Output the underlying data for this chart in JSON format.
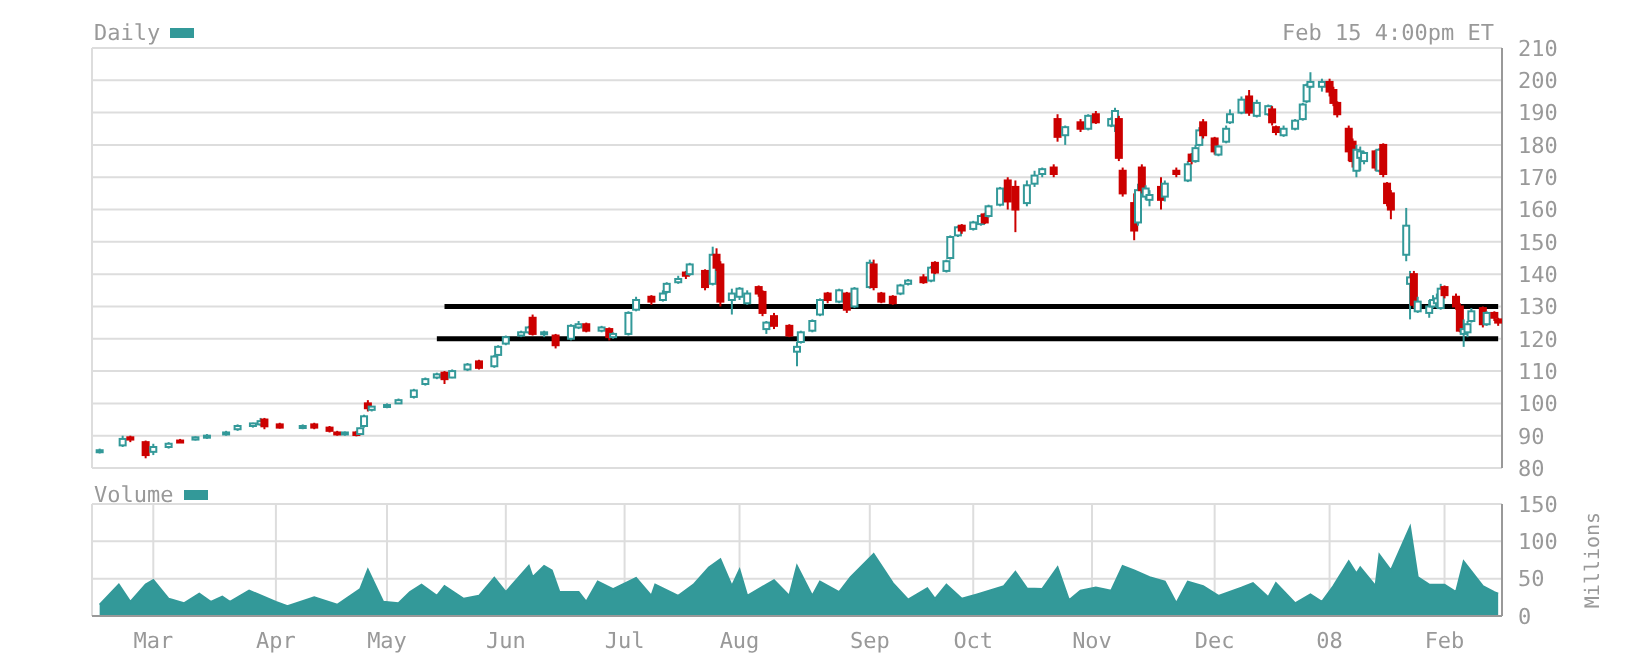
{
  "chart_data": [
    {
      "type": "candlestick",
      "legend": "top left",
      "tick_labels": "y",
      "grid": true,
      "annotations": [
        "Feb 15 4:00pm ET"
      ],
      "xlim": [
        "2007-02-13",
        "2008-02-16"
      ],
      "xticks": [
        {
          "value": "2007-03-01",
          "label": null
        },
        {
          "value": "2007-04-02",
          "label": null
        },
        {
          "value": "2007-05-01",
          "label": null
        },
        {
          "value": "2007-06-01",
          "label": null
        },
        {
          "value": "2007-07-02",
          "label": null
        },
        {
          "value": "2007-08-01",
          "label": null
        },
        {
          "value": "2007-09-04",
          "label": null
        },
        {
          "value": "2007-10-01",
          "label": null
        },
        {
          "value": "2007-11-01",
          "label": null
        },
        {
          "value": "2007-12-03",
          "label": null
        },
        {
          "value": "2008-01-02",
          "label": null
        },
        {
          "value": "2008-02-01",
          "label": null
        }
      ],
      "ylim": [
        80,
        210
      ],
      "yticks": [
        80,
        90,
        100,
        110,
        120,
        130,
        140,
        150,
        160,
        170,
        180,
        190,
        200,
        210
      ],
      "series": [
        {
          "type": "line",
          "color": "#000000",
          "x": [
            "2007-05-16",
            "2008-02-15"
          ],
          "values": [
            130,
            130
          ]
        },
        {
          "type": "line",
          "color": "#000000",
          "x": [
            "2007-05-14",
            "2008-02-15"
          ],
          "values": [
            120,
            120
          ]
        },
        {
          "name": "Daily",
          "color": "#339999",
          "colors": [
            "#339999",
            "#339999",
            "#cc0000",
            "#cc0000",
            "#339999",
            "#339999",
            "#cc0000",
            "#339999",
            "#339999",
            "#339999",
            "#339999",
            "#339999",
            "#339999",
            "#cc0000",
            "#cc0000",
            "#339999",
            "#cc0000",
            "#cc0000",
            "#cc0000",
            "#339999",
            "#cc0000",
            "#339999",
            "#339999",
            "#cc0000",
            "#339999",
            "#339999",
            "#339999",
            "#339999",
            "#339999",
            "#339999",
            "#cc0000",
            "#339999",
            "#339999",
            "#cc0000",
            "#339999",
            "#339999",
            "#339999",
            "#339999",
            "#339999",
            "#cc0000",
            "#339999",
            "#cc0000",
            "#339999",
            "#339999",
            "#cc0000",
            "#339999",
            "#cc0000",
            "#339999",
            "#339999",
            "#339999",
            "#cc0000",
            "#339999",
            "#339999",
            "#339999",
            "#cc0000",
            "#339999",
            "#cc0000",
            "#339999",
            "#cc0000",
            "#cc0000",
            "#339999",
            "#339999",
            "#339999",
            "#cc0000",
            "#cc0000",
            "#339999",
            "#cc0000",
            "#cc0000",
            "#339999",
            "#339999",
            "#339999",
            "#339999",
            "#cc0000",
            "#339999",
            "#cc0000",
            "#339999",
            "#339999",
            "#cc0000",
            "#cc0000",
            "#cc0000",
            "#339999",
            "#339999",
            "#cc0000",
            "#339999",
            "#cc0000",
            "#339999",
            "#339999",
            "#339999",
            "#cc0000",
            "#339999",
            "#339999",
            "#cc0000",
            "#339999",
            "#339999",
            "#cc0000",
            "#cc0000",
            "#339999",
            "#339999",
            "#339999",
            "#cc0000",
            "#cc0000",
            "#339999",
            "#cc0000",
            "#339999",
            "#cc0000",
            "#339999",
            "#339999",
            "#cc0000",
            "#cc0000",
            "#cc0000",
            "#339999",
            "#cc0000",
            "#339999",
            "#339999",
            "#cc0000",
            "#339999",
            "#cc0000",
            "#339999",
            "#cc0000",
            "#339999",
            "#339999",
            "#cc0000",
            "#cc0000",
            "#339999",
            "#339999",
            "#339999",
            "#339999",
            "#cc0000",
            "#339999",
            "#339999",
            "#cc0000",
            "#cc0000",
            "#339999",
            "#339999",
            "#339999",
            "#339999",
            "#339999",
            "#339999",
            "#cc0000",
            "#cc0000",
            "#cc0000",
            "#cc0000",
            "#cc0000",
            "#339999",
            "#339999",
            "#339999",
            "#cc0000",
            "#339999",
            "#cc0000",
            "#cc0000",
            "#cc0000",
            "#339999",
            "#339999",
            "#cc0000",
            "#339999",
            "#339999",
            "#339999",
            "#339999",
            "#339999",
            "#cc0000",
            "#cc0000",
            "#cc0000",
            "#339999",
            "#339999",
            "#339999",
            "#cc0000",
            "#339999",
            "#cc0000",
            "#cc0000"
          ],
          "x": [
            "2007-02-15",
            "2007-02-21",
            "2007-02-23",
            "2007-02-27",
            "2007-03-01",
            "2007-03-05",
            "2007-03-08",
            "2007-03-12",
            "2007-03-15",
            "2007-03-20",
            "2007-03-23",
            "2007-03-27",
            "2007-03-29",
            "2007-03-30",
            "2007-04-03",
            "2007-04-09",
            "2007-04-12",
            "2007-04-16",
            "2007-04-18",
            "2007-04-20",
            "2007-04-23",
            "2007-04-24",
            "2007-04-25",
            "2007-04-26",
            "2007-04-27",
            "2007-05-01",
            "2007-05-04",
            "2007-05-08",
            "2007-05-11",
            "2007-05-14",
            "2007-05-16",
            "2007-05-18",
            "2007-05-22",
            "2007-05-25",
            "2007-05-29",
            "2007-05-30",
            "2007-06-01",
            "2007-06-05",
            "2007-06-07",
            "2007-06-08",
            "2007-06-11",
            "2007-06-14",
            "2007-06-18",
            "2007-06-20",
            "2007-06-22",
            "2007-06-26",
            "2007-06-28",
            "2007-06-29",
            "2007-07-03",
            "2007-07-05",
            "2007-07-09",
            "2007-07-12",
            "2007-07-13",
            "2007-07-16",
            "2007-07-18",
            "2007-07-19",
            "2007-07-23",
            "2007-07-25",
            "2007-07-26",
            "2007-07-27",
            "2007-07-30",
            "2007-08-01",
            "2007-08-03",
            "2007-08-06",
            "2007-08-07",
            "2007-08-08",
            "2007-08-10",
            "2007-08-14",
            "2007-08-16",
            "2007-08-17",
            "2007-08-20",
            "2007-08-22",
            "2007-08-24",
            "2007-08-27",
            "2007-08-29",
            "2007-08-31",
            "2007-09-04",
            "2007-09-05",
            "2007-09-07",
            "2007-09-10",
            "2007-09-12",
            "2007-09-14",
            "2007-09-18",
            "2007-09-20",
            "2007-09-21",
            "2007-09-24",
            "2007-09-25",
            "2007-09-27",
            "2007-09-28",
            "2007-10-01",
            "2007-10-03",
            "2007-10-04",
            "2007-10-05",
            "2007-10-08",
            "2007-10-10",
            "2007-10-12",
            "2007-10-15",
            "2007-10-17",
            "2007-10-19",
            "2007-10-22",
            "2007-10-23",
            "2007-10-25",
            "2007-10-29",
            "2007-10-31",
            "2007-11-02",
            "2007-11-06",
            "2007-11-07",
            "2007-11-08",
            "2007-11-09",
            "2007-11-12",
            "2007-11-13",
            "2007-11-14",
            "2007-11-15",
            "2007-11-16",
            "2007-11-19",
            "2007-11-20",
            "2007-11-23",
            "2007-11-26",
            "2007-11-27",
            "2007-11-28",
            "2007-11-29",
            "2007-11-30",
            "2007-12-03",
            "2007-12-04",
            "2007-12-06",
            "2007-12-07",
            "2007-12-10",
            "2007-12-12",
            "2007-12-14",
            "2007-12-17",
            "2007-12-18",
            "2007-12-19",
            "2007-12-21",
            "2007-12-24",
            "2007-12-26",
            "2007-12-27",
            "2007-12-28",
            "2007-12-31",
            "2008-01-02",
            "2008-01-03",
            "2008-01-04",
            "2008-01-07",
            "2008-01-08",
            "2008-01-09",
            "2008-01-10",
            "2008-01-11",
            "2008-01-14",
            "2008-01-15",
            "2008-01-16",
            "2008-01-17",
            "2008-01-18",
            "2008-01-22",
            "2008-01-23",
            "2008-01-24",
            "2008-01-25",
            "2008-01-28",
            "2008-01-29",
            "2008-01-30",
            "2008-01-31",
            "2008-02-01",
            "2008-02-04",
            "2008-02-05",
            "2008-02-06",
            "2008-02-07",
            "2008-02-08",
            "2008-02-11",
            "2008-02-12",
            "2008-02-14",
            "2008-02-15"
          ],
          "ohlc": [
            [
              85,
              86,
              84.5,
              85.5
            ],
            [
              87,
              90,
              86.5,
              89
            ],
            [
              89.5,
              90,
              88,
              88.8
            ],
            [
              88,
              88.5,
              83,
              84
            ],
            [
              85,
              87.5,
              84,
              86.5
            ],
            [
              86.5,
              88,
              86,
              87.5
            ],
            [
              88.5,
              89,
              88,
              88.2
            ],
            [
              88.8,
              89.8,
              88.5,
              89.5
            ],
            [
              89.5,
              90.5,
              89,
              90
            ],
            [
              90.5,
              91.5,
              90,
              91
            ],
            [
              92,
              93.5,
              91.5,
              93
            ],
            [
              93,
              94,
              92.5,
              93.8
            ],
            [
              93.5,
              95.5,
              93,
              94.5
            ],
            [
              95,
              95.5,
              92,
              92.9
            ],
            [
              93.5,
              94,
              92.2,
              92.5
            ],
            [
              92.5,
              93.5,
              92,
              93
            ],
            [
              93.5,
              94,
              92,
              92.5
            ],
            [
              92.5,
              93,
              91,
              91.5
            ],
            [
              91,
              91.5,
              90,
              90.5
            ],
            [
              90.5,
              91.3,
              90,
              91
            ],
            [
              91,
              91.5,
              89.8,
              90.2
            ],
            [
              90.5,
              92.5,
              90.3,
              92.3
            ],
            [
              93,
              96.5,
              92.5,
              96
            ],
            [
              100,
              101,
              97.5,
              98.5
            ],
            [
              98,
              99,
              97.5,
              99
            ],
            [
              99,
              100,
              98.5,
              99.5
            ],
            [
              100,
              101.5,
              99.8,
              101
            ],
            [
              102,
              104.5,
              101.5,
              104
            ],
            [
              106,
              108,
              105.5,
              107.5
            ],
            [
              108,
              109.5,
              107.5,
              109
            ],
            [
              109.5,
              110,
              106,
              107.5
            ],
            [
              108,
              110.5,
              107.8,
              110
            ],
            [
              110.5,
              112.5,
              110,
              112
            ],
            [
              113,
              113.5,
              110.5,
              111
            ],
            [
              111.5,
              115,
              111,
              114.5
            ],
            [
              115,
              118,
              114.8,
              117.5
            ],
            [
              118.5,
              121,
              118,
              120.5
            ],
            [
              121,
              122.5,
              120.5,
              122
            ],
            [
              122,
              124,
              121.5,
              123.5
            ],
            [
              126.5,
              127.5,
              121,
              121.5
            ],
            [
              121.5,
              122.5,
              120.5,
              122
            ],
            [
              121,
              121.5,
              117,
              118
            ],
            [
              120,
              124.5,
              119.5,
              124
            ],
            [
              123.5,
              125.5,
              123,
              124.5
            ],
            [
              124.5,
              125,
              122,
              122.5
            ],
            [
              122.5,
              124,
              122,
              123.5
            ],
            [
              123,
              123.5,
              119.5,
              120.5
            ],
            [
              120.5,
              122,
              120,
              121.5
            ],
            [
              121.5,
              128.5,
              121,
              128
            ],
            [
              129,
              133,
              128.5,
              132
            ],
            [
              133,
              133.5,
              130.5,
              131.5
            ],
            [
              132,
              135,
              131.5,
              134
            ],
            [
              134.5,
              137.5,
              134,
              137
            ],
            [
              137.5,
              139.5,
              137,
              138.5
            ],
            [
              140.5,
              141,
              138.5,
              139.5
            ],
            [
              140,
              143.5,
              139.5,
              143
            ],
            [
              141,
              141.5,
              135,
              136
            ],
            [
              137,
              148.5,
              136.5,
              146
            ],
            [
              146,
              148,
              141,
              142
            ],
            [
              143,
              144,
              130,
              131.5
            ],
            [
              132,
              135.5,
              127.5,
              134
            ],
            [
              133,
              136,
              132,
              135.5
            ],
            [
              131,
              135,
              130.5,
              134
            ],
            [
              136,
              136.5,
              133,
              134
            ],
            [
              134.5,
              135,
              127,
              128
            ],
            [
              123,
              125.5,
              121.5,
              125
            ],
            [
              127,
              128,
              123,
              124
            ],
            [
              124,
              124.5,
              120.5,
              121
            ],
            [
              116,
              119,
              111.5,
              117.5
            ],
            [
              119,
              122.5,
              118.5,
              122
            ],
            [
              122.5,
              126,
              122,
              125.5
            ],
            [
              127.5,
              132.5,
              127,
              132
            ],
            [
              134,
              134.5,
              131,
              132
            ],
            [
              131.5,
              135.5,
              131,
              135
            ],
            [
              134,
              134.5,
              128,
              129
            ],
            [
              130,
              136,
              129.5,
              135.5
            ],
            [
              136,
              144.5,
              135.5,
              143.5
            ],
            [
              143,
              144.5,
              135,
              136
            ],
            [
              134,
              134.5,
              131,
              131.5
            ],
            [
              133,
              133.5,
              130.5,
              131
            ],
            [
              134,
              137,
              133.5,
              136.5
            ],
            [
              137,
              138.5,
              136.5,
              138
            ],
            [
              139,
              140,
              137,
              137.5
            ],
            [
              138,
              142.5,
              137.5,
              142
            ],
            [
              143.5,
              144,
              140,
              140.5
            ],
            [
              141,
              144.5,
              140.5,
              144
            ],
            [
              145,
              152,
              144.5,
              151.5
            ],
            [
              152,
              155,
              151.5,
              154.5
            ],
            [
              155,
              155.5,
              152.5,
              153.5
            ],
            [
              154,
              156.5,
              153.5,
              156
            ],
            [
              155.5,
              158.5,
              155,
              158
            ],
            [
              158.5,
              159,
              155.5,
              156
            ],
            [
              158,
              161.5,
              157.5,
              161
            ],
            [
              161.5,
              167,
              161,
              166.5
            ],
            [
              169,
              170,
              160,
              162.5
            ],
            [
              167,
              169,
              153,
              160
            ],
            [
              162,
              169,
              161,
              167.5
            ],
            [
              168,
              172,
              167,
              170.5
            ],
            [
              171,
              173,
              170,
              172.5
            ],
            [
              173,
              174,
              170,
              171
            ],
            [
              188,
              189.5,
              181,
              182.5
            ],
            [
              183,
              186,
              180,
              185.5
            ],
            [
              187,
              188,
              184,
              185
            ],
            [
              185,
              189.5,
              184.5,
              189
            ],
            [
              189.5,
              190.5,
              186.5,
              187
            ],
            [
              186,
              188.5,
              185.5,
              188
            ],
            [
              186,
              191.5,
              184,
              190.5
            ],
            [
              188,
              189,
              175,
              176
            ],
            [
              172,
              173,
              164,
              165
            ],
            [
              162,
              165,
              150.5,
              153.5
            ],
            [
              156,
              168,
              155,
              166
            ],
            [
              173,
              174,
              165,
              166
            ],
            [
              164,
              167.5,
              163,
              166.5
            ],
            [
              163,
              166,
              161,
              164.5
            ],
            [
              167,
              170,
              160,
              163
            ],
            [
              164,
              169,
              162.5,
              168
            ],
            [
              172,
              173,
              170,
              171
            ],
            [
              169,
              175,
              168.5,
              174
            ],
            [
              177,
              177.5,
              174,
              175
            ],
            [
              175,
              180,
              174.5,
              179
            ],
            [
              180,
              185.5,
              179.5,
              184.5
            ],
            [
              187,
              188,
              182,
              183
            ],
            [
              182,
              182.5,
              177,
              178
            ],
            [
              177,
              180,
              176.5,
              179.5
            ],
            [
              181,
              186,
              180.5,
              185
            ],
            [
              187,
              191,
              186.5,
              189.5
            ],
            [
              190,
              195,
              189.5,
              194
            ],
            [
              195,
              197,
              189,
              190
            ],
            [
              189,
              194,
              188.5,
              193
            ],
            [
              189.5,
              192.5,
              189,
              192
            ],
            [
              191,
              192,
              186,
              187
            ],
            [
              185.5,
              186,
              183,
              184
            ],
            [
              183,
              186,
              182.5,
              185
            ],
            [
              185,
              188,
              184.5,
              187.5
            ],
            [
              188,
              193,
              187.5,
              192.5
            ],
            [
              193.5,
              199,
              193,
              198.5
            ],
            [
              198,
              202.5,
              197.5,
              199.5
            ],
            [
              198,
              200.5,
              196.5,
              199.5
            ],
            [
              199.5,
              200.5,
              195,
              196.5
            ],
            [
              197,
              198,
              192,
              193
            ],
            [
              193,
              193.5,
              188.5,
              189.5
            ],
            [
              185,
              186,
              175,
              178
            ],
            [
              181,
              182,
              173,
              175
            ],
            [
              172,
              180,
              170,
              178.5
            ],
            [
              176,
              179.5,
              172,
              178
            ],
            [
              175,
              178,
              174,
              177.5
            ],
            [
              178,
              178.5,
              172,
              173
            ],
            [
              172,
              179,
              171.5,
              178.5
            ],
            [
              180,
              180.5,
              170,
              171
            ],
            [
              168,
              168.5,
              161,
              162
            ],
            [
              165,
              166,
              157,
              160
            ],
            [
              146,
              160.5,
              144,
              155
            ],
            [
              137,
              141,
              126,
              139
            ],
            [
              140,
              141,
              129.5,
              130.5
            ],
            [
              128.5,
              133,
              128,
              131.5
            ],
            [
              128,
              132,
              126.5,
              130
            ],
            [
              130,
              133.5,
              129.5,
              132
            ],
            [
              131,
              134,
              129.5,
              132.5
            ],
            [
              129.5,
              137,
              129,
              135.5
            ],
            [
              136,
              136.5,
              132.5,
              133.5
            ],
            [
              133,
              134,
              129,
              130
            ],
            [
              130,
              131,
              122,
              122.5
            ],
            [
              121.5,
              126,
              117.5,
              123
            ],
            [
              122,
              125.5,
              120.5,
              124.5
            ],
            [
              125.5,
              129.5,
              125,
              128.5
            ],
            [
              129.5,
              130,
              123.5,
              124.5
            ],
            [
              124.5,
              128.5,
              124,
              128
            ],
            [
              128,
              128.5,
              125.5,
              126.5
            ],
            [
              126,
              126.5,
              124,
              125
            ]
          ]
        }
      ]
    },
    {
      "type": "area",
      "legend": "top left",
      "grid": true,
      "ylabel": "Millions",
      "xlim": [
        "2007-02-13",
        "2008-02-16"
      ],
      "xticks": [
        {
          "value": "2007-03-01",
          "label": "Mar"
        },
        {
          "value": "2007-04-02",
          "label": "Apr"
        },
        {
          "value": "2007-05-01",
          "label": "May"
        },
        {
          "value": "2007-06-01",
          "label": "Jun"
        },
        {
          "value": "2007-07-02",
          "label": "Jul"
        },
        {
          "value": "2007-08-01",
          "label": "Aug"
        },
        {
          "value": "2007-09-04",
          "label": "Sep"
        },
        {
          "value": "2007-10-01",
          "label": "Oct"
        },
        {
          "value": "2007-11-01",
          "label": "Nov"
        },
        {
          "value": "2007-12-03",
          "label": "Dec"
        },
        {
          "value": "2008-01-02",
          "label": "08"
        },
        {
          "value": "2008-02-01",
          "label": "Feb"
        }
      ],
      "ylim": [
        0,
        150
      ],
      "yticks": [
        0,
        50,
        100,
        150
      ],
      "series": [
        {
          "name": "Volume",
          "color": "#339999",
          "x": [
            "2007-02-15",
            "2007-02-20",
            "2007-02-23",
            "2007-02-27",
            "2007-03-01",
            "2007-03-05",
            "2007-03-09",
            "2007-03-13",
            "2007-03-16",
            "2007-03-19",
            "2007-03-21",
            "2007-03-26",
            "2007-04-02",
            "2007-04-05",
            "2007-04-12",
            "2007-04-18",
            "2007-04-24",
            "2007-04-26",
            "2007-04-30",
            "2007-05-04",
            "2007-05-07",
            "2007-05-10",
            "2007-05-14",
            "2007-05-16",
            "2007-05-21",
            "2007-05-25",
            "2007-05-29",
            "2007-06-01",
            "2007-06-07",
            "2007-06-08",
            "2007-06-11",
            "2007-06-13",
            "2007-06-15",
            "2007-06-20",
            "2007-06-22",
            "2007-06-25",
            "2007-06-29",
            "2007-07-05",
            "2007-07-09",
            "2007-07-10",
            "2007-07-16",
            "2007-07-20",
            "2007-07-24",
            "2007-07-27",
            "2007-07-30",
            "2007-08-01",
            "2007-08-03",
            "2007-08-10",
            "2007-08-14",
            "2007-08-16",
            "2007-08-20",
            "2007-08-22",
            "2007-08-27",
            "2007-08-30",
            "2007-09-05",
            "2007-09-10",
            "2007-09-14",
            "2007-09-19",
            "2007-09-21",
            "2007-09-24",
            "2007-09-28",
            "2007-10-02",
            "2007-10-09",
            "2007-10-12",
            "2007-10-15",
            "2007-10-19",
            "2007-10-23",
            "2007-10-26",
            "2007-10-29",
            "2007-11-02",
            "2007-11-06",
            "2007-11-09",
            "2007-11-12",
            "2007-11-16",
            "2007-11-20",
            "2007-11-23",
            "2007-11-26",
            "2007-11-30",
            "2007-12-04",
            "2007-12-10",
            "2007-12-13",
            "2007-12-17",
            "2007-12-19",
            "2007-12-24",
            "2007-12-28",
            "2007-12-31",
            "2008-01-03",
            "2008-01-07",
            "2008-01-09",
            "2008-01-10",
            "2008-01-14",
            "2008-01-15",
            "2008-01-18",
            "2008-01-23",
            "2008-01-25",
            "2008-01-28",
            "2008-02-01",
            "2008-02-04",
            "2008-02-06",
            "2008-02-11",
            "2008-02-14",
            "2008-02-15"
          ],
          "values": [
            15,
            42,
            19,
            42,
            48,
            23,
            17,
            30,
            19,
            26,
            19,
            34,
            19,
            13,
            25,
            15,
            36,
            62,
            19,
            17,
            32,
            42,
            27,
            40,
            23,
            27,
            51,
            32,
            67,
            52,
            67,
            61,
            32,
            32,
            19,
            46,
            36,
            51,
            27,
            42,
            27,
            42,
            65,
            76,
            40,
            62,
            27,
            48,
            27,
            67,
            27,
            46,
            32,
            52,
            83,
            44,
            22,
            37,
            23,
            42,
            23,
            29,
            40,
            59,
            37,
            36,
            65,
            21,
            34,
            38,
            34,
            67,
            61,
            52,
            46,
            17,
            46,
            40,
            27,
            38,
            44,
            25,
            44,
            17,
            29,
            19,
            40,
            73,
            57,
            65,
            40,
            82,
            61,
            119,
            52,
            42,
            42,
            32,
            73,
            40,
            32,
            30
          ]
        }
      ]
    }
  ]
}
